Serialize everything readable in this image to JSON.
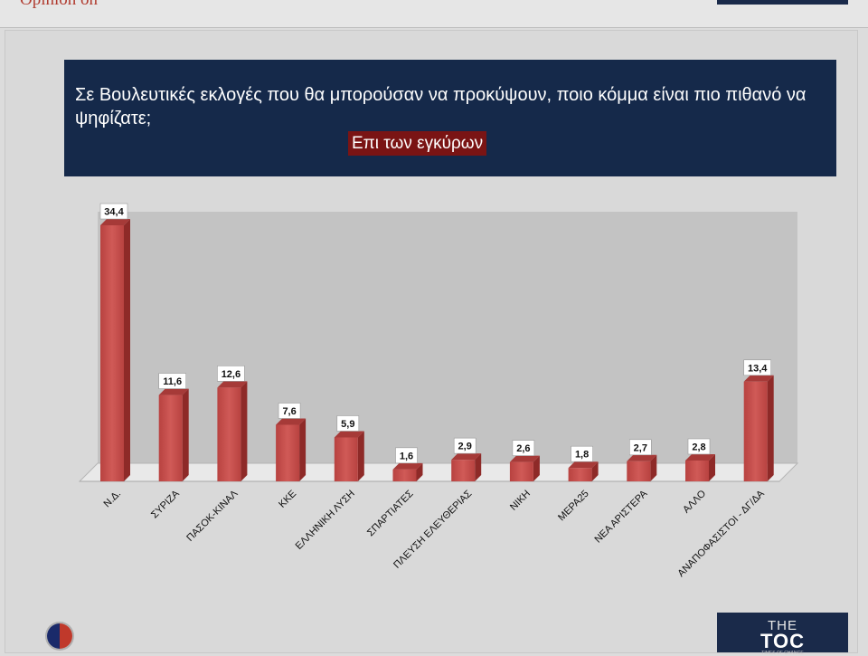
{
  "top": {
    "cut_text": "Opinion on"
  },
  "header": {
    "title": "Σε Βουλευτικές εκλογές που θα μπορούσαν να προκύψουν, ποιο κόμμα είναι πιο πιθανό να ψηφίζατε;",
    "subtitle": "Επι των εγκύρων"
  },
  "logo": {
    "line1": "THE",
    "line2": "TOC",
    "line3": "TIMES OF CHANGE"
  },
  "colors": {
    "bar": "#c9514f",
    "bar_side": "#8e2a28",
    "header_bg": "#15294a",
    "subtitle_bg": "#7a1414",
    "plot_bg": "#c3c3c3"
  },
  "chart_data": {
    "type": "bar",
    "title": "",
    "xlabel": "",
    "ylabel": "",
    "ylim": [
      0,
      40
    ],
    "grid": false,
    "categories": [
      "Ν.Δ.",
      "ΣΥΡΙΖΑ",
      "ΠΑΣΟΚ-ΚΙΝΑΛ",
      "ΚΚΕ",
      "ΕΛΛΗΝΙΚΗ ΛΥΣΗ",
      "ΣΠΑΡΤΙΑΤΕΣ",
      "ΠΛΕΥΣΗ ΕΛΕΥΘΕΡΙΑΣ",
      "ΝΙΚΗ",
      "ΜΕΡΑ25",
      "ΝΕΑ ΑΡΙΣΤΕΡΑ",
      "ΑΛΛΟ",
      "ΑΝΑΠΟΦΑΣΙΣΤΟΙ - ΔΓ/ΔΑ"
    ],
    "values": [
      34.4,
      11.6,
      12.6,
      7.6,
      5.9,
      1.6,
      2.9,
      2.6,
      1.8,
      2.7,
      2.8,
      13.4
    ],
    "value_labels": [
      "34,4",
      "11,6",
      "12,6",
      "7,6",
      "5,9",
      "1,6",
      "2,9",
      "2,6",
      "1,8",
      "2,7",
      "2,8",
      "13,4"
    ]
  }
}
